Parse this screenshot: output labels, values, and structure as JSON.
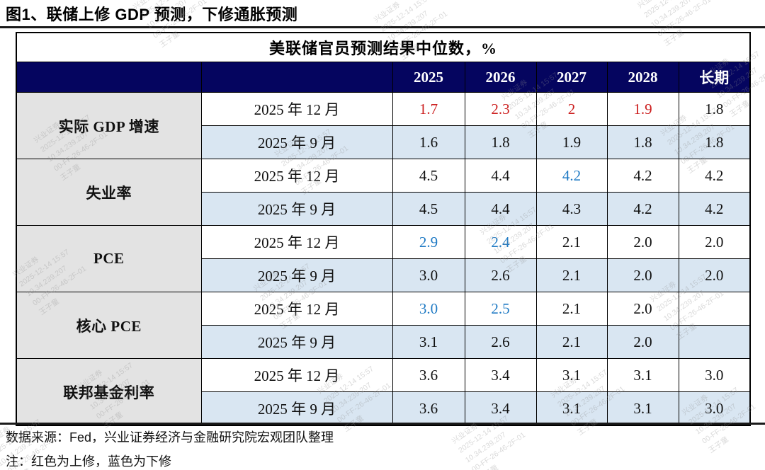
{
  "figure": {
    "title": "图1、联储上修 GDP 预测，下修通胀预测",
    "source_note": "数据来源：Fed，兴业证券经济与金融研究院宏观团队整理",
    "color_note": "注：红色为上修，蓝色为下修"
  },
  "colors": {
    "header_bg": "#05055f",
    "header_text": "#ffffff",
    "label_column_bg": "#e3e3e3",
    "alt_row_bg": "#d9e6f2",
    "up_revision_red": "#cc1f1f",
    "down_revision_blue": "#1f7ac4"
  },
  "watermark": {
    "lines": [
      "兴业证券",
      "2025-12-14 15:57",
      "10.34.239.207",
      "00-FF-26-46-2F-01",
      "王子童"
    ]
  },
  "chart_data": {
    "type": "table",
    "title": "美联储官员预测结果中位数，%",
    "columns": [
      "2025",
      "2026",
      "2027",
      "2028",
      "长期"
    ],
    "legend_note": "red = upward revision, blue = downward revision",
    "groups": [
      {
        "label": "实际 GDP 增速",
        "rows": [
          {
            "period": "2025 年 12 月",
            "values": [
              "1.7",
              "2.3",
              "2",
              "1.9",
              "1.8"
            ],
            "colors": [
              "red",
              "red",
              "red",
              "red",
              "black"
            ]
          },
          {
            "period": "2025 年 9 月",
            "values": [
              "1.6",
              "1.8",
              "1.9",
              "1.8",
              "1.8"
            ],
            "colors": [
              "black",
              "black",
              "black",
              "black",
              "black"
            ]
          }
        ]
      },
      {
        "label": "失业率",
        "rows": [
          {
            "period": "2025 年 12 月",
            "values": [
              "4.5",
              "4.4",
              "4.2",
              "4.2",
              "4.2"
            ],
            "colors": [
              "black",
              "black",
              "blue",
              "black",
              "black"
            ]
          },
          {
            "period": "2025 年 9 月",
            "values": [
              "4.5",
              "4.4",
              "4.3",
              "4.2",
              "4.2"
            ],
            "colors": [
              "black",
              "black",
              "black",
              "black",
              "black"
            ]
          }
        ]
      },
      {
        "label": "PCE",
        "rows": [
          {
            "period": "2025 年 12 月",
            "values": [
              "2.9",
              "2.4",
              "2.1",
              "2.0",
              "2.0"
            ],
            "colors": [
              "blue",
              "blue",
              "black",
              "black",
              "black"
            ]
          },
          {
            "period": "2025 年 9 月",
            "values": [
              "3.0",
              "2.6",
              "2.1",
              "2.0",
              "2.0"
            ],
            "colors": [
              "black",
              "black",
              "black",
              "black",
              "black"
            ]
          }
        ]
      },
      {
        "label": "核心 PCE",
        "rows": [
          {
            "period": "2025 年 12 月",
            "values": [
              "3.0",
              "2.5",
              "2.1",
              "2.0",
              ""
            ],
            "colors": [
              "blue",
              "blue",
              "black",
              "black",
              "black"
            ]
          },
          {
            "period": "2025 年 9 月",
            "values": [
              "3.1",
              "2.6",
              "2.1",
              "2.0",
              ""
            ],
            "colors": [
              "black",
              "black",
              "black",
              "black",
              "black"
            ]
          }
        ]
      },
      {
        "label": "联邦基金利率",
        "rows": [
          {
            "period": "2025 年 12 月",
            "values": [
              "3.6",
              "3.4",
              "3.1",
              "3.1",
              "3.0"
            ],
            "colors": [
              "black",
              "black",
              "black",
              "black",
              "black"
            ]
          },
          {
            "period": "2025 年 9 月",
            "values": [
              "3.6",
              "3.4",
              "3.1",
              "3.1",
              "3.0"
            ],
            "colors": [
              "black",
              "black",
              "black",
              "black",
              "black"
            ]
          }
        ]
      }
    ]
  }
}
